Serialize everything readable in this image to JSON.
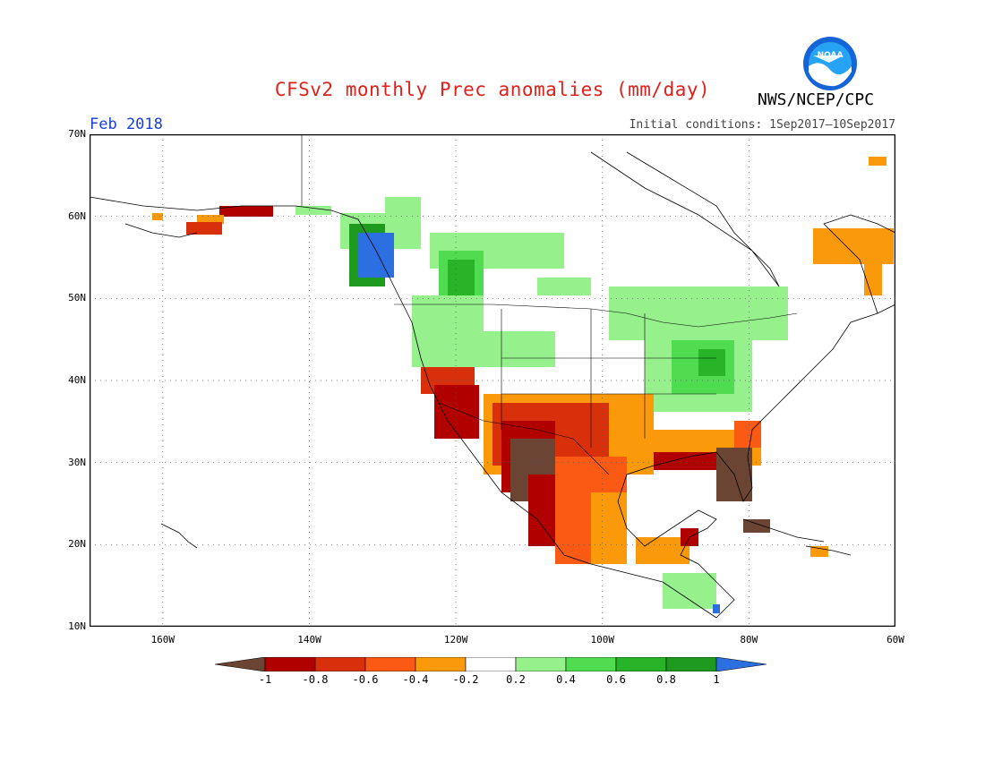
{
  "header": {
    "title": "CFSv2 monthly Prec anomalies (mm/day)",
    "agency": "NWS/NCEP/CPC",
    "period": "Feb 2018",
    "initial_conditions": "Initial conditions: 1Sep2017–10Sep2017",
    "logo_text": "NOAA"
  },
  "map": {
    "lon_range": [
      -170,
      -60
    ],
    "lat_range": [
      10,
      70
    ],
    "grid": "dotted",
    "lat_ticks": [
      {
        "value": 70,
        "label": "70N"
      },
      {
        "value": 60,
        "label": "60N"
      },
      {
        "value": 50,
        "label": "50N"
      },
      {
        "value": 40,
        "label": "40N"
      },
      {
        "value": 30,
        "label": "30N"
      },
      {
        "value": 20,
        "label": "20N"
      },
      {
        "value": 10,
        "label": "10N"
      }
    ],
    "lon_ticks": [
      {
        "value": -160,
        "label": "160W"
      },
      {
        "value": -140,
        "label": "140W"
      },
      {
        "value": -120,
        "label": "120W"
      },
      {
        "value": -100,
        "label": "100W"
      },
      {
        "value": -80,
        "label": "80W"
      },
      {
        "value": -60,
        "label": "60W"
      }
    ]
  },
  "legend": {
    "bounds": [
      "-1",
      "-0.8",
      "-0.6",
      "-0.4",
      "-0.2",
      "0.2",
      "0.4",
      "0.6",
      "0.8",
      "1"
    ],
    "colors": [
      "#6b4434",
      "#b00000",
      "#d8300a",
      "#fa5a14",
      "#fa9a0a",
      "#ffffff",
      "#96f08c",
      "#50dc50",
      "#28b428",
      "#1e9b1e",
      "#2b6fe0"
    ]
  },
  "colors": {
    "ocean": "#ffffff",
    "land_outline": "#000000",
    "dry_extreme": "#6b4434",
    "dry_strong": "#b00000",
    "dry_mod": "#fa5a14",
    "dry_weak": "#fa9a0a",
    "wet_weak": "#96f08c",
    "wet_mod": "#50dc50",
    "wet_strong": "#28b428",
    "wet_extreme": "#2b6fe0"
  }
}
